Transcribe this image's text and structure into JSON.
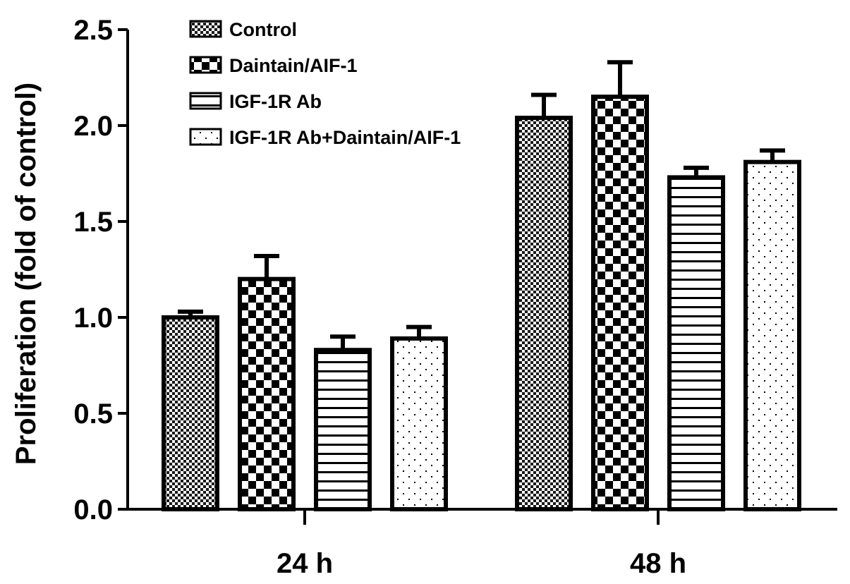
{
  "chart_data": {
    "type": "bar",
    "title": "",
    "xlabel": "",
    "ylabel": "Proliferation (fold of control)",
    "ylim": [
      0,
      2.5
    ],
    "yticks": [
      "0.0",
      "0.5",
      "1.0",
      "1.5",
      "2.0",
      "2.5"
    ],
    "categories": [
      "24 h",
      "48 h"
    ],
    "legend_position": "top-left",
    "series": [
      {
        "name": "Control",
        "pattern": "fine-checker",
        "values": [
          1.0,
          2.04
        ],
        "errors": [
          0.03,
          0.12
        ]
      },
      {
        "name": "Daintain/AIF-1",
        "pattern": "large-checker",
        "values": [
          1.2,
          2.15
        ],
        "errors": [
          0.12,
          0.18
        ]
      },
      {
        "name": "IGF-1R Ab",
        "pattern": "horizontal-lines",
        "values": [
          0.83,
          1.73
        ],
        "errors": [
          0.07,
          0.05
        ]
      },
      {
        "name": "IGF-1R Ab+Daintain/AIF-1",
        "pattern": "dots",
        "values": [
          0.89,
          1.81
        ],
        "errors": [
          0.06,
          0.06
        ]
      }
    ]
  }
}
